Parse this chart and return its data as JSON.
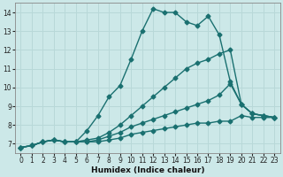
{
  "xlabel": "Humidex (Indice chaleur)",
  "bg_color": "#cce8e8",
  "line_color": "#1a7070",
  "grid_color": "#b8d8d8",
  "xlim": [
    -0.5,
    23.5
  ],
  "ylim": [
    6.5,
    14.5
  ],
  "yticks": [
    7,
    8,
    9,
    10,
    11,
    12,
    13,
    14
  ],
  "xticks": [
    0,
    1,
    2,
    3,
    4,
    5,
    6,
    7,
    8,
    9,
    10,
    11,
    12,
    13,
    14,
    15,
    16,
    17,
    18,
    19,
    20,
    21,
    22,
    23
  ],
  "lines": [
    {
      "x": [
        0,
        1,
        2,
        3,
        4,
        5,
        6,
        7,
        8,
        9,
        10,
        11,
        12,
        13,
        14,
        15,
        16,
        17,
        18,
        19,
        20,
        21,
        22,
        23
      ],
      "y": [
        6.8,
        6.9,
        7.1,
        7.2,
        7.1,
        7.1,
        7.7,
        8.5,
        9.5,
        10.1,
        11.5,
        13.0,
        14.2,
        14.0,
        14.0,
        13.5,
        13.3,
        13.8,
        12.8,
        10.3,
        9.1,
        8.6,
        8.5,
        8.4
      ]
    },
    {
      "x": [
        0,
        1,
        2,
        3,
        4,
        5,
        6,
        7,
        8,
        9,
        10,
        11,
        12,
        13,
        14,
        15,
        16,
        17,
        18,
        19,
        20,
        21,
        22,
        23
      ],
      "y": [
        6.8,
        6.9,
        7.1,
        7.2,
        7.1,
        7.1,
        7.2,
        7.3,
        7.6,
        8.0,
        8.5,
        9.0,
        9.5,
        10.0,
        10.5,
        11.0,
        11.3,
        11.5,
        11.8,
        12.0,
        9.1,
        8.6,
        8.5,
        8.4
      ]
    },
    {
      "x": [
        0,
        1,
        2,
        3,
        4,
        5,
        6,
        7,
        8,
        9,
        10,
        11,
        12,
        13,
        14,
        15,
        16,
        17,
        18,
        19,
        20,
        21,
        22,
        23
      ],
      "y": [
        6.8,
        6.9,
        7.1,
        7.2,
        7.1,
        7.1,
        7.1,
        7.2,
        7.4,
        7.6,
        7.9,
        8.1,
        8.3,
        8.5,
        8.7,
        8.9,
        9.1,
        9.3,
        9.6,
        10.2,
        9.1,
        8.6,
        8.5,
        8.4
      ]
    },
    {
      "x": [
        0,
        1,
        2,
        3,
        4,
        5,
        6,
        7,
        8,
        9,
        10,
        11,
        12,
        13,
        14,
        15,
        16,
        17,
        18,
        19,
        20,
        21,
        22,
        23
      ],
      "y": [
        6.8,
        6.9,
        7.1,
        7.2,
        7.1,
        7.1,
        7.1,
        7.1,
        7.2,
        7.3,
        7.5,
        7.6,
        7.7,
        7.8,
        7.9,
        8.0,
        8.1,
        8.1,
        8.2,
        8.2,
        8.5,
        8.4,
        8.4,
        8.4
      ]
    }
  ],
  "marker": "D",
  "marker_size": 2.5,
  "line_width": 1.0,
  "tick_fontsize": 5.5,
  "xlabel_fontsize": 6.5
}
